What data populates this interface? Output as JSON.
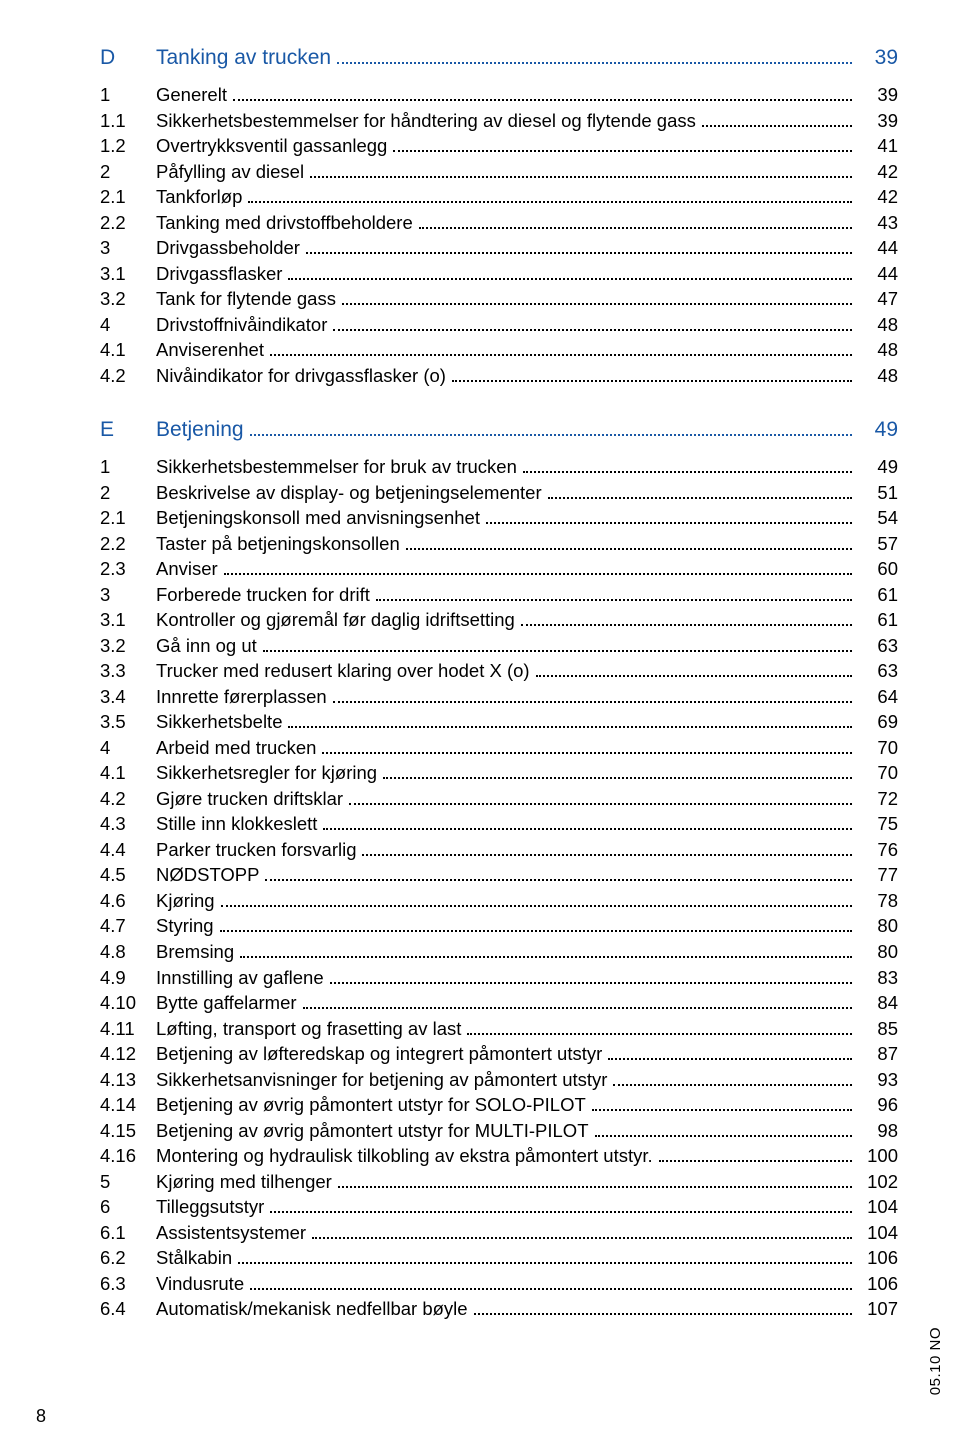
{
  "page_number": "8",
  "side_label": "05.10 NO",
  "style": {
    "heading_color": "#1958a6",
    "body_color": "#000000",
    "background": "#ffffff",
    "heading_fontsize": 21,
    "body_fontsize": 18.5,
    "font_family": "Arial"
  },
  "sections": [
    {
      "letter": "D",
      "title": "Tanking av trucken",
      "page": "39",
      "items": [
        {
          "num": "1",
          "title": "Generelt",
          "page": "39"
        },
        {
          "num": "1.1",
          "title": "Sikkerhetsbestemmelser for håndtering av diesel og flytende gass",
          "page": "39"
        },
        {
          "num": "1.2",
          "title": "Overtrykksventil gassanlegg",
          "page": "41"
        },
        {
          "num": "2",
          "title": "Påfylling av diesel",
          "page": "42"
        },
        {
          "num": "2.1",
          "title": "Tankforløp",
          "page": "42"
        },
        {
          "num": "2.2",
          "title": "Tanking med drivstoffbeholdere",
          "page": "43"
        },
        {
          "num": "3",
          "title": "Drivgassbeholder",
          "page": "44"
        },
        {
          "num": "3.1",
          "title": "Drivgassflasker",
          "page": "44"
        },
        {
          "num": "3.2",
          "title": "Tank for flytende gass",
          "page": "47"
        },
        {
          "num": "4",
          "title": "Drivstoffnivåindikator",
          "page": "48"
        },
        {
          "num": "4.1",
          "title": "Anviserenhet",
          "page": "48"
        },
        {
          "num": "4.2",
          "title": "Nivåindikator for drivgassflasker (o)",
          "page": "48"
        }
      ]
    },
    {
      "letter": "E",
      "title": "Betjening",
      "page": "49",
      "items": [
        {
          "num": "1",
          "title": "Sikkerhetsbestemmelser for bruk av trucken",
          "page": "49"
        },
        {
          "num": "2",
          "title": "Beskrivelse av display- og betjeningselementer",
          "page": "51"
        },
        {
          "num": "2.1",
          "title": "Betjeningskonsoll med anvisningsenhet",
          "page": "54"
        },
        {
          "num": "2.2",
          "title": "Taster på betjeningskonsollen",
          "page": "57"
        },
        {
          "num": "2.3",
          "title": "Anviser",
          "page": "60"
        },
        {
          "num": "3",
          "title": "Forberede trucken for drift",
          "page": "61"
        },
        {
          "num": "3.1",
          "title": "Kontroller og gjøremål før daglig idriftsetting",
          "page": "61"
        },
        {
          "num": "3.2",
          "title": "Gå inn og ut",
          "page": "63"
        },
        {
          "num": "3.3",
          "title": "Trucker med redusert klaring over hodet X (o)",
          "page": "63"
        },
        {
          "num": "3.4",
          "title": "Innrette førerplassen",
          "page": "64"
        },
        {
          "num": "3.5",
          "title": "Sikkerhetsbelte",
          "page": "69"
        },
        {
          "num": "4",
          "title": "Arbeid med trucken",
          "page": "70"
        },
        {
          "num": "4.1",
          "title": "Sikkerhetsregler for kjøring",
          "page": "70"
        },
        {
          "num": "4.2",
          "title": "Gjøre trucken driftsklar",
          "page": "72"
        },
        {
          "num": "4.3",
          "title": "Stille inn klokkeslett",
          "page": "75"
        },
        {
          "num": "4.4",
          "title": "Parker trucken forsvarlig",
          "page": "76"
        },
        {
          "num": "4.5",
          "title": "NØDSTOPP",
          "page": "77"
        },
        {
          "num": "4.6",
          "title": "Kjøring",
          "page": "78"
        },
        {
          "num": "4.7",
          "title": "Styring",
          "page": "80"
        },
        {
          "num": "4.8",
          "title": "Bremsing",
          "page": "80"
        },
        {
          "num": "4.9",
          "title": "Innstilling av gaflene",
          "page": "83"
        },
        {
          "num": "4.10",
          "title": "Bytte gaffelarmer",
          "page": "84"
        },
        {
          "num": "4.11",
          "title": "Løfting, transport og frasetting av last",
          "page": "85"
        },
        {
          "num": "4.12",
          "title": "Betjening av løfteredskap og integrert påmontert utstyr",
          "page": "87"
        },
        {
          "num": "4.13",
          "title": "Sikkerhetsanvisninger for betjening av påmontert utstyr",
          "page": "93"
        },
        {
          "num": "4.14",
          "title": "Betjening av øvrig påmontert utstyr for SOLO-PILOT",
          "page": "96"
        },
        {
          "num": "4.15",
          "title": "Betjening av øvrig påmontert utstyr for MULTI-PILOT",
          "page": "98"
        },
        {
          "num": "4.16",
          "title": "Montering og hydraulisk tilkobling av ekstra påmontert utstyr.",
          "page": "100"
        },
        {
          "num": "5",
          "title": "Kjøring med tilhenger",
          "page": "102"
        },
        {
          "num": "6",
          "title": "Tilleggsutstyr",
          "page": "104"
        },
        {
          "num": "6.1",
          "title": "Assistentsystemer",
          "page": "104"
        },
        {
          "num": "6.2",
          "title": "Stålkabin",
          "page": "106"
        },
        {
          "num": "6.3",
          "title": "Vindusrute",
          "page": "106"
        },
        {
          "num": "6.4",
          "title": "Automatisk/mekanisk nedfellbar bøyle",
          "page": "107"
        }
      ]
    }
  ]
}
